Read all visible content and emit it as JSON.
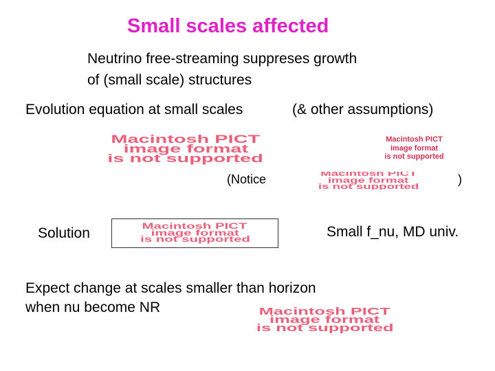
{
  "title": "Small scales affected",
  "intro": {
    "line1": "Neutrino free-streaming suppreses growth",
    "line2": "of (small scale) structures"
  },
  "evolution_label": "Evolution equation at small scales",
  "assumptions_label": "(& other assumptions)",
  "notice_label": "(Notice",
  "notice_close": ")",
  "solution_label": "Solution",
  "small_fnu_label": "Small f_nu, MD univ.",
  "expect": {
    "line1": "Expect change at scales smaller than horizon",
    "line2": "when nu become NR"
  },
  "pict_placeholder": {
    "line1": "Macintosh PICT",
    "line2": "image format",
    "line3": "is not supported"
  }
}
